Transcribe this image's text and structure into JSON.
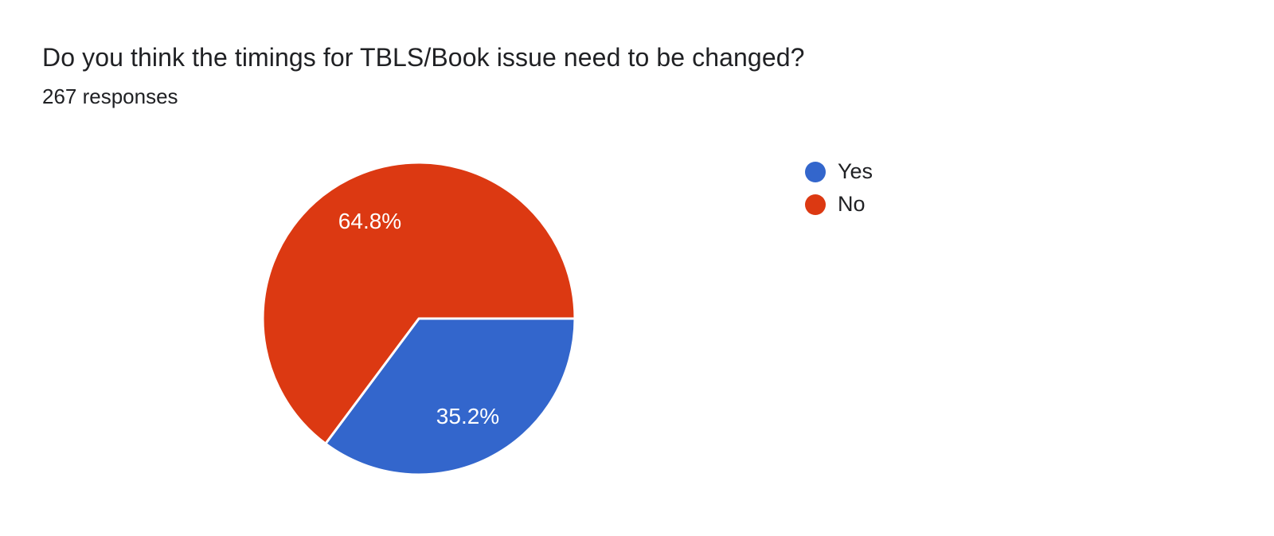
{
  "header": {
    "title": "Do you think the timings for TBLS/Book issue need to be changed?",
    "subtitle": "267 responses"
  },
  "chart_data": {
    "type": "pie",
    "title": "Do you think the timings for TBLS/Book issue need to be changed?",
    "subtitle": "267 responses",
    "total_responses": 267,
    "legend_position": "right",
    "start_angle_deg": 0,
    "direction": "clockwise",
    "label_color": "#ffffff",
    "slice_border_color": "#ffffff",
    "slices": [
      {
        "label": "Yes",
        "value_pct": 35.2,
        "display": "35.2%",
        "color": "#3366cc"
      },
      {
        "label": "No",
        "value_pct": 64.8,
        "display": "64.8%",
        "color": "#dc3912"
      }
    ]
  }
}
